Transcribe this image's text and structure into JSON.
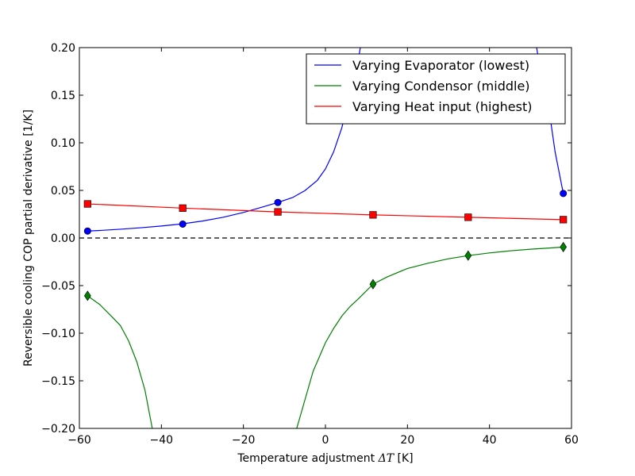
{
  "chart_data": {
    "type": "line",
    "title": "",
    "xlabel": "Temperature adjustment",
    "xlabel_symbol": "ΔT",
    "xlabel_unit": "[K]",
    "ylabel": "Reversible cooling COP partial derivative [1/K]",
    "xlim": [
      -60,
      60
    ],
    "ylim": [
      -0.2,
      0.2
    ],
    "x_ticks": [
      -60,
      -40,
      -20,
      0,
      20,
      40,
      60
    ],
    "x_tick_labels": [
      "−60",
      "−40",
      "−20",
      "0",
      "20",
      "40",
      "60"
    ],
    "y_ticks": [
      -0.2,
      -0.15,
      -0.1,
      -0.05,
      0.0,
      0.05,
      0.1,
      0.15,
      0.2
    ],
    "y_tick_labels": [
      "−0.20",
      "−0.15",
      "−0.10",
      "−0.05",
      "0.00",
      "0.05",
      "0.10",
      "0.15",
      "0.20"
    ],
    "grid": false,
    "legend_position": "top-right",
    "zero_line": {
      "y": 0,
      "style": "dashed",
      "color": "#000000"
    },
    "series": [
      {
        "name": "Varying Evaporator (lowest)",
        "color": "#0000ff",
        "marker": "circle",
        "x": [
          -58,
          -55,
          -50,
          -45,
          -40,
          -35,
          -30,
          -25,
          -20,
          -15,
          -11.6,
          -8,
          -5,
          -2,
          0,
          2,
          4,
          6,
          8,
          10,
          50,
          52,
          54,
          56,
          58
        ],
        "y": [
          0.0073,
          0.0079,
          0.0092,
          0.0108,
          0.0126,
          0.0148,
          0.0178,
          0.0217,
          0.0268,
          0.033,
          0.0373,
          0.0425,
          0.0498,
          0.0605,
          0.0725,
          0.0905,
          0.1159,
          0.1506,
          0.1866,
          0.24,
          0.24,
          0.1866,
          0.1506,
          0.0905,
          0.0468
        ],
        "marker_x": [
          -58,
          -34.8,
          -11.6,
          58
        ],
        "marker_y": [
          0.0073,
          0.0146,
          0.0373,
          0.0468
        ]
      },
      {
        "name": "Varying Condensor (middle)",
        "color": "#008000",
        "marker": "diamond",
        "x": [
          -58,
          -55,
          -52,
          -50,
          -48,
          -46,
          -44,
          -42,
          -40,
          -8,
          -7,
          -6,
          -5,
          -4,
          -3,
          -2,
          -1,
          0,
          2,
          4,
          6,
          8,
          11.6,
          15,
          20,
          25,
          30,
          34.8,
          40,
          45,
          50,
          55,
          58
        ],
        "y": [
          -0.0607,
          -0.07,
          -0.083,
          -0.092,
          -0.108,
          -0.13,
          -0.16,
          -0.205,
          -0.24,
          -0.24,
          -0.2,
          -0.185,
          -0.17,
          -0.155,
          -0.14,
          -0.13,
          -0.12,
          -0.11,
          -0.095,
          -0.082,
          -0.072,
          -0.064,
          -0.0485,
          -0.041,
          -0.032,
          -0.0265,
          -0.0218,
          -0.0185,
          -0.0157,
          -0.0135,
          -0.0118,
          -0.0104,
          -0.0095
        ],
        "marker_x": [
          -58,
          11.6,
          34.8,
          58
        ],
        "marker_y": [
          -0.0607,
          -0.0485,
          -0.0185,
          -0.0095
        ]
      },
      {
        "name": "Varying Heat input (highest)",
        "color": "#ff0000",
        "marker": "square",
        "x": [
          -58,
          -34.8,
          -11.6,
          11.6,
          34.8,
          58
        ],
        "y": [
          0.0358,
          0.0314,
          0.0274,
          0.0243,
          0.0218,
          0.0193
        ],
        "marker_x": [
          -58,
          -34.8,
          -11.6,
          11.6,
          34.8,
          58
        ],
        "marker_y": [
          0.0358,
          0.0314,
          0.0274,
          0.0243,
          0.0218,
          0.0193
        ]
      }
    ]
  }
}
